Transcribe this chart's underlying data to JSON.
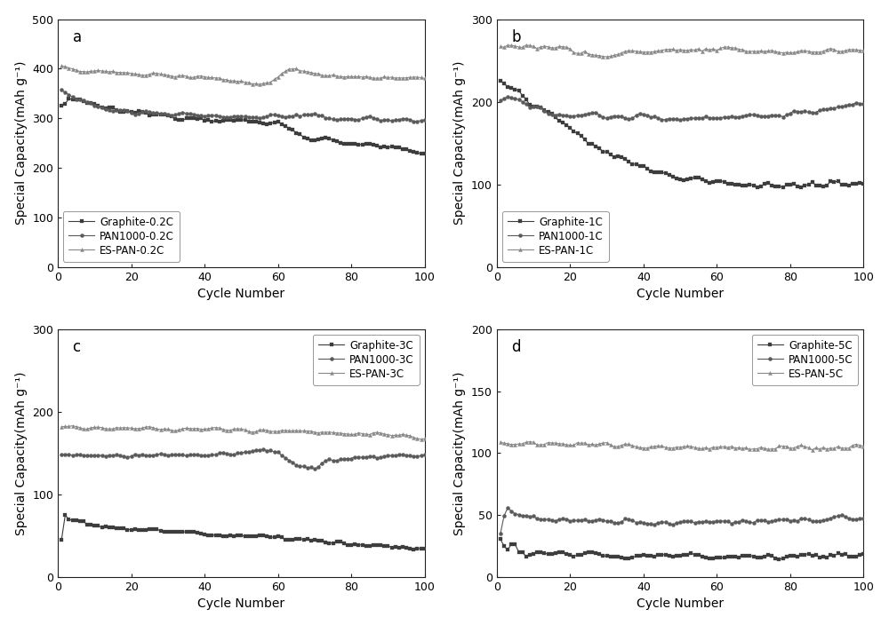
{
  "panels": [
    {
      "label": "a",
      "ylabel": "Special Capacity(mAh g⁻¹)",
      "xlabel": "Cycle Number",
      "ylim": [
        0,
        500
      ],
      "yticks": [
        0,
        100,
        200,
        300,
        400,
        500
      ],
      "xlim": [
        0,
        100
      ],
      "xticks": [
        0,
        20,
        40,
        60,
        80,
        100
      ],
      "legend_loc": "lower left",
      "series": [
        {
          "label": "Graphite-0.2C",
          "color": "#3d3d3d",
          "marker": "s",
          "markersize": 3,
          "linewidth": 0.8,
          "keypoints": [
            [
              1,
              325
            ],
            [
              2,
              330
            ],
            [
              3,
              340
            ],
            [
              5,
              335
            ],
            [
              8,
              330
            ],
            [
              10,
              325
            ],
            [
              15,
              318
            ],
            [
              20,
              312
            ],
            [
              30,
              305
            ],
            [
              40,
              300
            ],
            [
              50,
              295
            ],
            [
              55,
              290
            ],
            [
              60,
              292
            ],
            [
              65,
              270
            ],
            [
              70,
              260
            ],
            [
              80,
              250
            ],
            [
              90,
              240
            ],
            [
              100,
              228
            ]
          ],
          "noise": 4
        },
        {
          "label": "PAN1000-0.2C",
          "color": "#5a5a5a",
          "marker": "o",
          "markersize": 3,
          "linewidth": 0.8,
          "keypoints": [
            [
              1,
              360
            ],
            [
              3,
              350
            ],
            [
              5,
              340
            ],
            [
              8,
              330
            ],
            [
              12,
              320
            ],
            [
              20,
              315
            ],
            [
              30,
              310
            ],
            [
              40,
              305
            ],
            [
              50,
              303
            ],
            [
              60,
              305
            ],
            [
              70,
              303
            ],
            [
              80,
              300
            ],
            [
              90,
              298
            ],
            [
              100,
              295
            ]
          ],
          "noise": 4
        },
        {
          "label": "ES-PAN-0.2C",
          "color": "#888888",
          "marker": "^",
          "markersize": 3,
          "linewidth": 0.8,
          "keypoints": [
            [
              1,
              405
            ],
            [
              5,
              400
            ],
            [
              10,
              395
            ],
            [
              20,
              390
            ],
            [
              30,
              388
            ],
            [
              40,
              385
            ],
            [
              48,
              375
            ],
            [
              52,
              372
            ],
            [
              55,
              370
            ],
            [
              58,
              375
            ],
            [
              62,
              395
            ],
            [
              65,
              400
            ],
            [
              70,
              390
            ],
            [
              80,
              385
            ],
            [
              90,
              383
            ],
            [
              100,
              380
            ]
          ],
          "noise": 3
        }
      ]
    },
    {
      "label": "b",
      "ylabel": "Special Capacity(mAh g⁻¹)",
      "xlabel": "Cycle Number",
      "ylim": [
        0,
        300
      ],
      "yticks": [
        0,
        100,
        200,
        300
      ],
      "xlim": [
        0,
        100
      ],
      "xticks": [
        0,
        20,
        40,
        60,
        80,
        100
      ],
      "legend_loc": "lower left",
      "series": [
        {
          "label": "Graphite-1C",
          "color": "#3d3d3d",
          "marker": "s",
          "markersize": 3,
          "linewidth": 0.8,
          "keypoints": [
            [
              1,
              225
            ],
            [
              3,
              220
            ],
            [
              5,
              215
            ],
            [
              8,
              205
            ],
            [
              10,
              195
            ],
            [
              15,
              185
            ],
            [
              20,
              165
            ],
            [
              25,
              150
            ],
            [
              30,
              140
            ],
            [
              35,
              130
            ],
            [
              40,
              120
            ],
            [
              45,
              112
            ],
            [
              50,
              108
            ],
            [
              55,
              105
            ],
            [
              60,
              103
            ],
            [
              65,
              100
            ],
            [
              70,
              100
            ],
            [
              75,
              99
            ],
            [
              80,
              98
            ],
            [
              90,
              99
            ],
            [
              100,
              100
            ]
          ],
          "noise": 3
        },
        {
          "label": "PAN1000-1C",
          "color": "#5a5a5a",
          "marker": "o",
          "markersize": 3,
          "linewidth": 0.8,
          "keypoints": [
            [
              1,
              200
            ],
            [
              3,
              205
            ],
            [
              5,
              202
            ],
            [
              8,
              197
            ],
            [
              10,
              192
            ],
            [
              15,
              188
            ],
            [
              20,
              185
            ],
            [
              30,
              183
            ],
            [
              40,
              181
            ],
            [
              50,
              180
            ],
            [
              60,
              182
            ],
            [
              70,
              183
            ],
            [
              80,
              185
            ],
            [
              90,
              192
            ],
            [
              100,
              195
            ]
          ],
          "noise": 3
        },
        {
          "label": "ES-PAN-1C",
          "color": "#888888",
          "marker": "^",
          "markersize": 3,
          "linewidth": 0.8,
          "keypoints": [
            [
              1,
              268
            ],
            [
              3,
              270
            ],
            [
              5,
              268
            ],
            [
              10,
              267
            ],
            [
              20,
              265
            ],
            [
              25,
              258
            ],
            [
              28,
              253
            ],
            [
              30,
              255
            ],
            [
              35,
              260
            ],
            [
              40,
              262
            ],
            [
              50,
              263
            ],
            [
              60,
              262
            ],
            [
              70,
              263
            ],
            [
              80,
              260
            ],
            [
              90,
              262
            ],
            [
              100,
              263
            ]
          ],
          "noise": 3
        }
      ]
    },
    {
      "label": "c",
      "ylabel": "Special Capacity(mAh g⁻¹)",
      "xlabel": "Cycle Number",
      "ylim": [
        0,
        300
      ],
      "yticks": [
        0,
        100,
        200,
        300
      ],
      "xlim": [
        0,
        100
      ],
      "xticks": [
        0,
        20,
        40,
        60,
        80,
        100
      ],
      "legend_loc": "upper right",
      "series": [
        {
          "label": "Graphite-3C",
          "color": "#3d3d3d",
          "marker": "s",
          "markersize": 3,
          "linewidth": 0.8,
          "keypoints": [
            [
              1,
              45
            ],
            [
              2,
              75
            ],
            [
              3,
              70
            ],
            [
              5,
              68
            ],
            [
              8,
              65
            ],
            [
              10,
              63
            ],
            [
              15,
              60
            ],
            [
              20,
              58
            ],
            [
              30,
              55
            ],
            [
              40,
              52
            ],
            [
              50,
              50
            ],
            [
              60,
              48
            ],
            [
              70,
              44
            ],
            [
              80,
              40
            ],
            [
              90,
              37
            ],
            [
              100,
              34
            ]
          ],
          "noise": 2
        },
        {
          "label": "PAN1000-3C",
          "color": "#5a5a5a",
          "marker": "o",
          "markersize": 3,
          "linewidth": 0.8,
          "keypoints": [
            [
              1,
              148
            ],
            [
              3,
              148
            ],
            [
              5,
              147
            ],
            [
              10,
              147
            ],
            [
              20,
              147
            ],
            [
              30,
              148
            ],
            [
              40,
              148
            ],
            [
              50,
              150
            ],
            [
              55,
              153
            ],
            [
              60,
              152
            ],
            [
              65,
              135
            ],
            [
              68,
              131
            ],
            [
              70,
              133
            ],
            [
              72,
              138
            ],
            [
              75,
              140
            ],
            [
              80,
              143
            ],
            [
              90,
              147
            ],
            [
              100,
              148
            ]
          ],
          "noise": 2
        },
        {
          "label": "ES-PAN-3C",
          "color": "#888888",
          "marker": "^",
          "markersize": 3,
          "linewidth": 0.8,
          "keypoints": [
            [
              1,
              183
            ],
            [
              3,
              182
            ],
            [
              5,
              181
            ],
            [
              10,
              180
            ],
            [
              20,
              180
            ],
            [
              30,
              179
            ],
            [
              40,
              179
            ],
            [
              50,
              178
            ],
            [
              60,
              178
            ],
            [
              70,
              176
            ],
            [
              80,
              174
            ],
            [
              90,
              172
            ],
            [
              100,
              169
            ]
          ],
          "noise": 2
        }
      ]
    },
    {
      "label": "d",
      "ylabel": "Special Capacity(mAh g⁻¹)",
      "xlabel": "Cycle Number",
      "ylim": [
        0,
        200
      ],
      "yticks": [
        0,
        50,
        100,
        150,
        200
      ],
      "xlim": [
        0,
        100
      ],
      "xticks": [
        0,
        20,
        40,
        60,
        80,
        100
      ],
      "legend_loc": "upper right",
      "series": [
        {
          "label": "Graphite-5C",
          "color": "#3d3d3d",
          "marker": "s",
          "markersize": 3,
          "linewidth": 0.8,
          "keypoints": [
            [
              1,
              30
            ],
            [
              2,
              25
            ],
            [
              3,
              22
            ],
            [
              4,
              28
            ],
            [
              5,
              26
            ],
            [
              6,
              20
            ],
            [
              8,
              18
            ],
            [
              10,
              18
            ],
            [
              20,
              18
            ],
            [
              30,
              18
            ],
            [
              40,
              17
            ],
            [
              50,
              17
            ],
            [
              60,
              17
            ],
            [
              70,
              17
            ],
            [
              80,
              17
            ],
            [
              90,
              17
            ],
            [
              100,
              17
            ]
          ],
          "noise": 2
        },
        {
          "label": "PAN1000-5C",
          "color": "#5a5a5a",
          "marker": "o",
          "markersize": 3,
          "linewidth": 0.8,
          "keypoints": [
            [
              1,
              35
            ],
            [
              2,
              50
            ],
            [
              3,
              57
            ],
            [
              4,
              55
            ],
            [
              5,
              52
            ],
            [
              6,
              50
            ],
            [
              7,
              49
            ],
            [
              8,
              48
            ],
            [
              10,
              47
            ],
            [
              15,
              46
            ],
            [
              20,
              46
            ],
            [
              30,
              45
            ],
            [
              40,
              45
            ],
            [
              50,
              45
            ],
            [
              60,
              45
            ],
            [
              70,
              45
            ],
            [
              80,
              46
            ],
            [
              90,
              47
            ],
            [
              100,
              48
            ]
          ],
          "noise": 2
        },
        {
          "label": "ES-PAN-5C",
          "color": "#888888",
          "marker": "^",
          "markersize": 3,
          "linewidth": 0.8,
          "keypoints": [
            [
              1,
              108
            ],
            [
              3,
              108
            ],
            [
              5,
              107
            ],
            [
              10,
              107
            ],
            [
              20,
              107
            ],
            [
              30,
              106
            ],
            [
              40,
              106
            ],
            [
              50,
              106
            ],
            [
              60,
              105
            ],
            [
              70,
              105
            ],
            [
              80,
              105
            ],
            [
              90,
              105
            ],
            [
              100,
              105
            ]
          ],
          "noise": 2
        }
      ]
    }
  ],
  "figure_bg": "#ffffff",
  "axes_bg": "#ffffff",
  "font_size_label": 10,
  "font_size_tick": 9,
  "font_size_legend": 8.5,
  "font_size_panel_label": 12
}
